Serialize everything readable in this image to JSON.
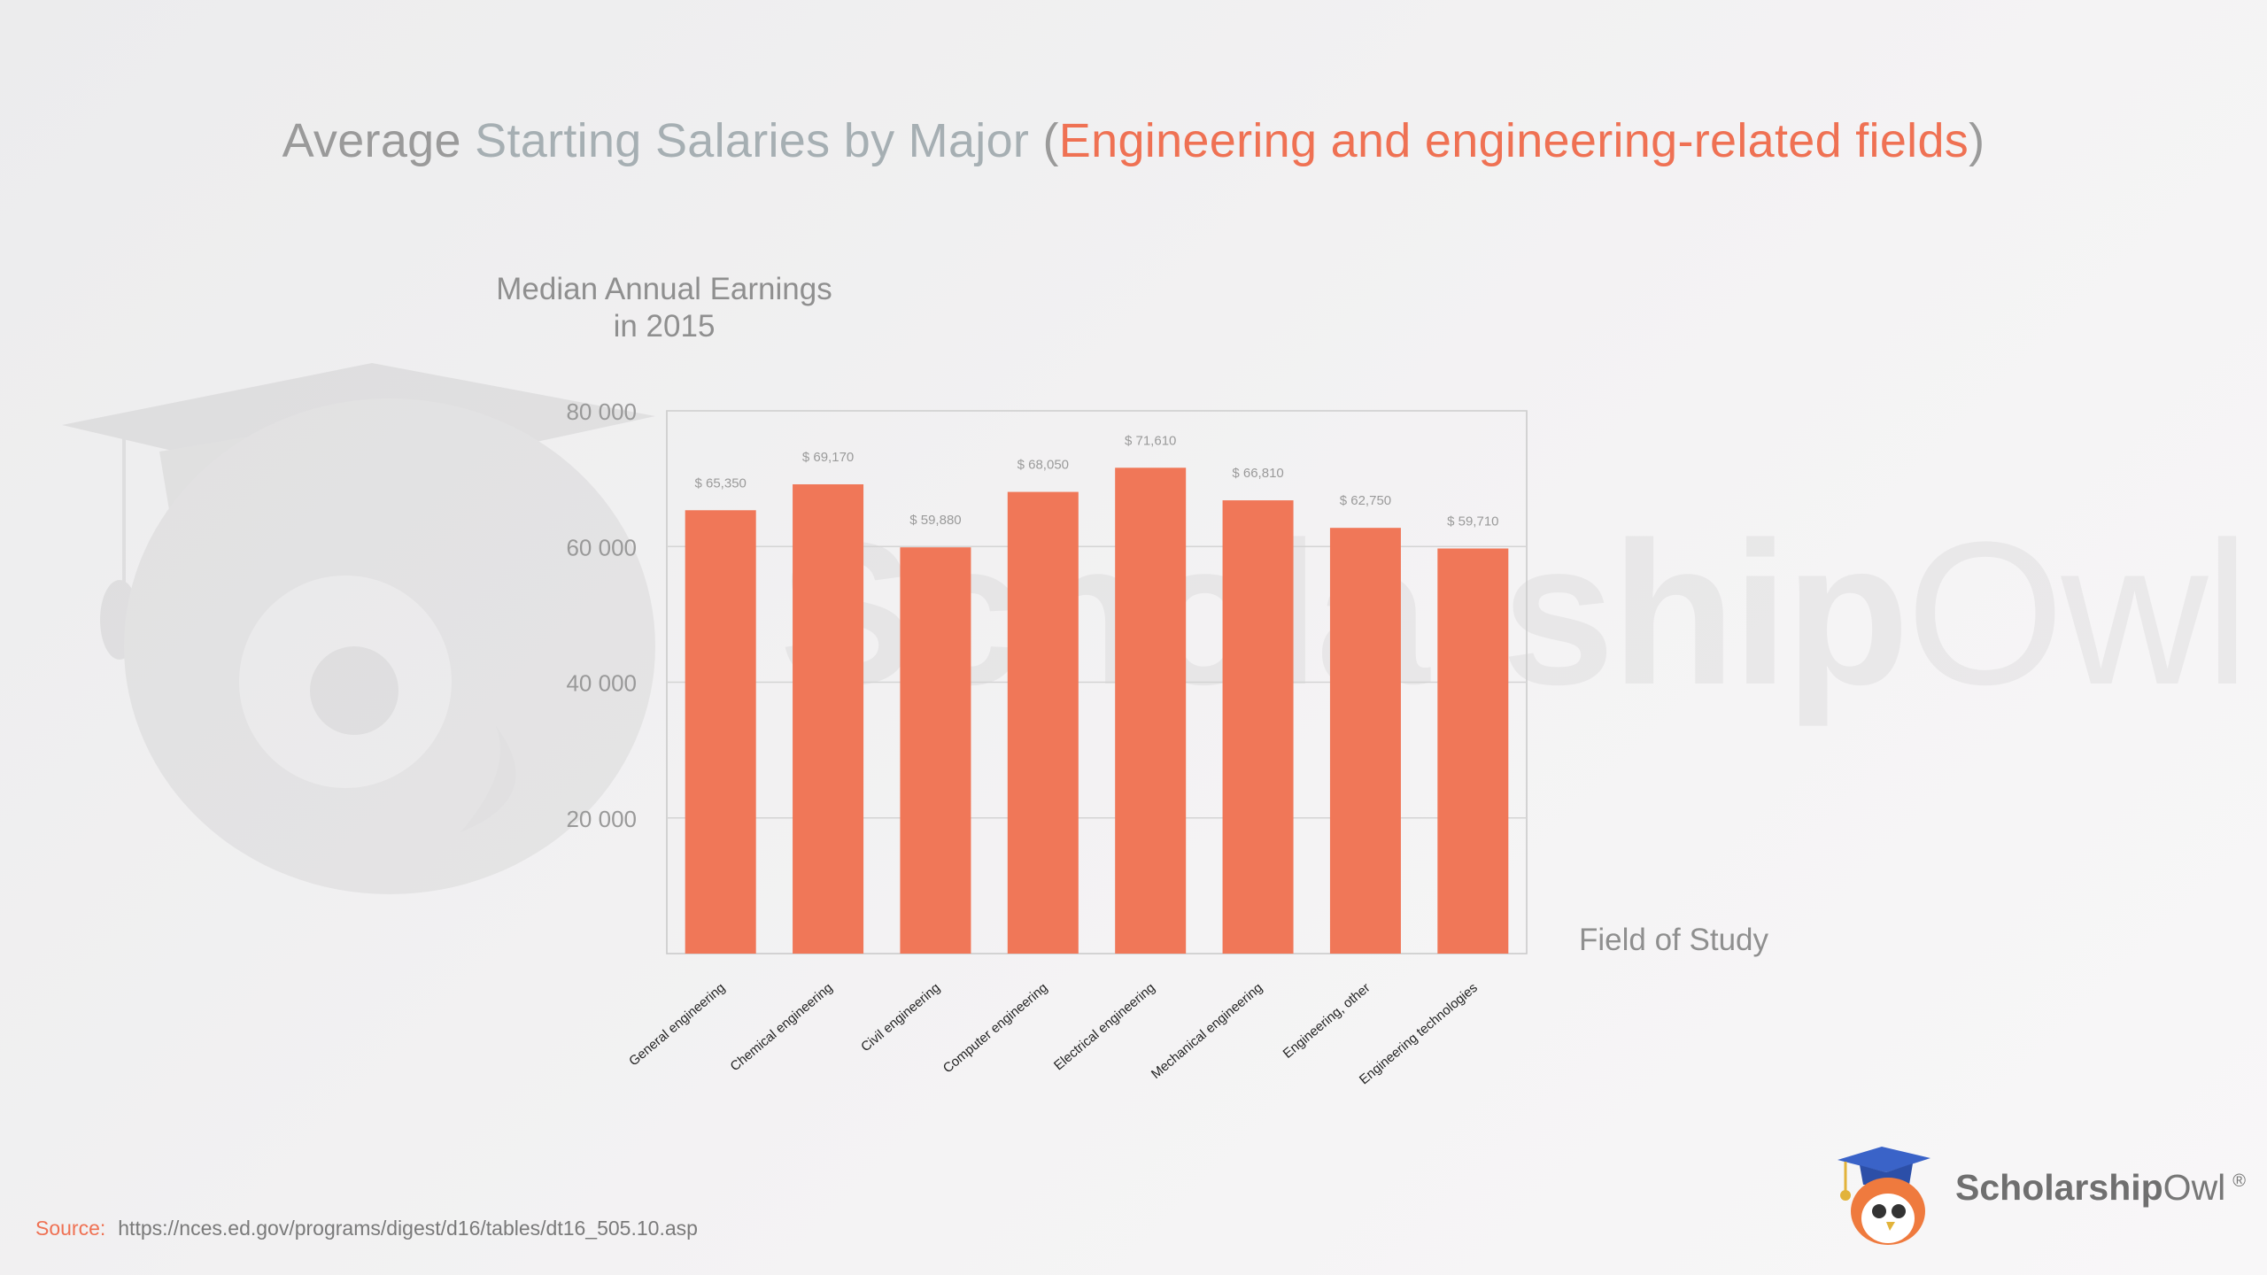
{
  "title": {
    "part1": "Average ",
    "part2": "Starting Salaries by Major",
    "part3": " (",
    "part4": "Engineering and engineering-related fields",
    "part5": ")"
  },
  "chart_data": {
    "type": "bar",
    "title": "Average Starting Salaries by Major (Engineering and engineering-related fields)",
    "ylabel_line1": "Median Annual Earnings",
    "ylabel_line2": "in 2015",
    "xlabel": "Field of Study",
    "ylim": [
      0,
      80000
    ],
    "yticks": [
      20000,
      40000,
      60000,
      80000
    ],
    "ytick_labels": [
      "20 000",
      "40 000",
      "60 000",
      "80 000"
    ],
    "grid": true,
    "categories": [
      "General engineering",
      "Chemical engineering",
      "Civil engineering",
      "Computer engineering",
      "Electrical engineering",
      "Mechanical engineering",
      "Engineering, other",
      "Engineering technologies"
    ],
    "values": [
      65350,
      69170,
      59880,
      68050,
      71610,
      66810,
      62750,
      59710
    ],
    "value_labels": [
      "$ 65,350",
      "$ 69,170",
      "$ 59,880",
      "$ 68,050",
      "$ 71,610",
      "$ 66,810",
      "$ 62,750",
      "$ 59,710"
    ],
    "bar_color": "#f07758"
  },
  "watermark": {
    "bold": "Scholarship",
    "light": "Owl",
    "reg": "®"
  },
  "source": {
    "label": "Source:",
    "url": "https://nces.ed.gov/programs/digest/d16/tables/dt16_505.10.asp"
  },
  "logo": {
    "bold": "Scholarship",
    "light": "Owl",
    "reg": "®"
  }
}
